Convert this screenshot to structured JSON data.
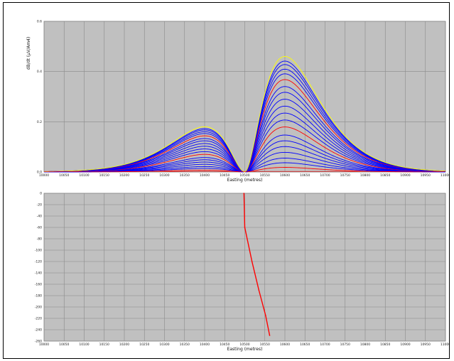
{
  "chart_data": [
    {
      "type": "line",
      "title": "",
      "xlabel": "Easting (metres)",
      "ylabel": "dB/dt (µV/Am4)",
      "xlim": [
        10000,
        11000
      ],
      "ylim": [
        0,
        0.6
      ],
      "grid": true,
      "x_ticks": [
        "10000",
        "10050",
        "10100",
        "10150",
        "10200",
        "10250",
        "10300",
        "10350",
        "10400",
        "10450",
        "10500",
        "10550",
        "10600",
        "10650",
        "10700",
        "10750",
        "10800",
        "10850",
        "10900",
        "10950",
        "11000"
      ],
      "y_ticks": [
        "0.0",
        "0.2",
        "0.4",
        "0.6"
      ],
      "profile_shape": {
        "trough_x": 10500,
        "left_peak": {
          "x": 10400,
          "y": 0.18
        },
        "right_peak": {
          "x": 10600,
          "y": 0.46
        }
      },
      "series": [
        {
          "peak_scale": 0.04,
          "color": "#ff0000"
        },
        {
          "peak_scale": 0.08,
          "color": "#0000ff"
        },
        {
          "peak_scale": 0.12,
          "color": "#0000ff"
        },
        {
          "peak_scale": 0.17,
          "color": "#0000ff"
        },
        {
          "peak_scale": 0.22,
          "color": "#0000ff"
        },
        {
          "peak_scale": 0.27,
          "color": "#0000ff"
        },
        {
          "peak_scale": 0.32,
          "color": "#0000ff"
        },
        {
          "peak_scale": 0.39,
          "color": "#ff0000"
        },
        {
          "peak_scale": 0.45,
          "color": "#0000ff"
        },
        {
          "peak_scale": 0.51,
          "color": "#0000ff"
        },
        {
          "peak_scale": 0.57,
          "color": "#0000ff"
        },
        {
          "peak_scale": 0.63,
          "color": "#0000ff"
        },
        {
          "peak_scale": 0.69,
          "color": "#0000ff"
        },
        {
          "peak_scale": 0.74,
          "color": "#0000ff"
        },
        {
          "peak_scale": 0.8,
          "color": "#ff0000"
        },
        {
          "peak_scale": 0.85,
          "color": "#0000ff"
        },
        {
          "peak_scale": 0.89,
          "color": "#0000ff"
        },
        {
          "peak_scale": 0.93,
          "color": "#0000ff"
        },
        {
          "peak_scale": 0.96,
          "color": "#0000ff"
        },
        {
          "peak_scale": 1.0,
          "color": "#ffff00"
        }
      ]
    },
    {
      "type": "line",
      "title": "",
      "xlabel": "Easting (metres)",
      "ylabel": "",
      "xlim": [
        10000,
        11000
      ],
      "ylim": [
        -260,
        0
      ],
      "grid": true,
      "x_ticks": [
        "10000",
        "10050",
        "10100",
        "10150",
        "10200",
        "10250",
        "10300",
        "10350",
        "10400",
        "10450",
        "10500",
        "10550",
        "10600",
        "10650",
        "10700",
        "10750",
        "10800",
        "10850",
        "10900",
        "10950",
        "11000"
      ],
      "y_ticks": [
        "0",
        "-20",
        "-40",
        "-60",
        "-80",
        "-100",
        "-120",
        "-140",
        "-160",
        "-180",
        "-200",
        "-220",
        "-240",
        "-260"
      ],
      "series": [
        {
          "color": "#ff0000",
          "x": [
            10498,
            10500,
            10518,
            10535,
            10552,
            10562
          ],
          "y": [
            0,
            -60,
            -120,
            -170,
            -215,
            -250
          ]
        }
      ]
    }
  ]
}
